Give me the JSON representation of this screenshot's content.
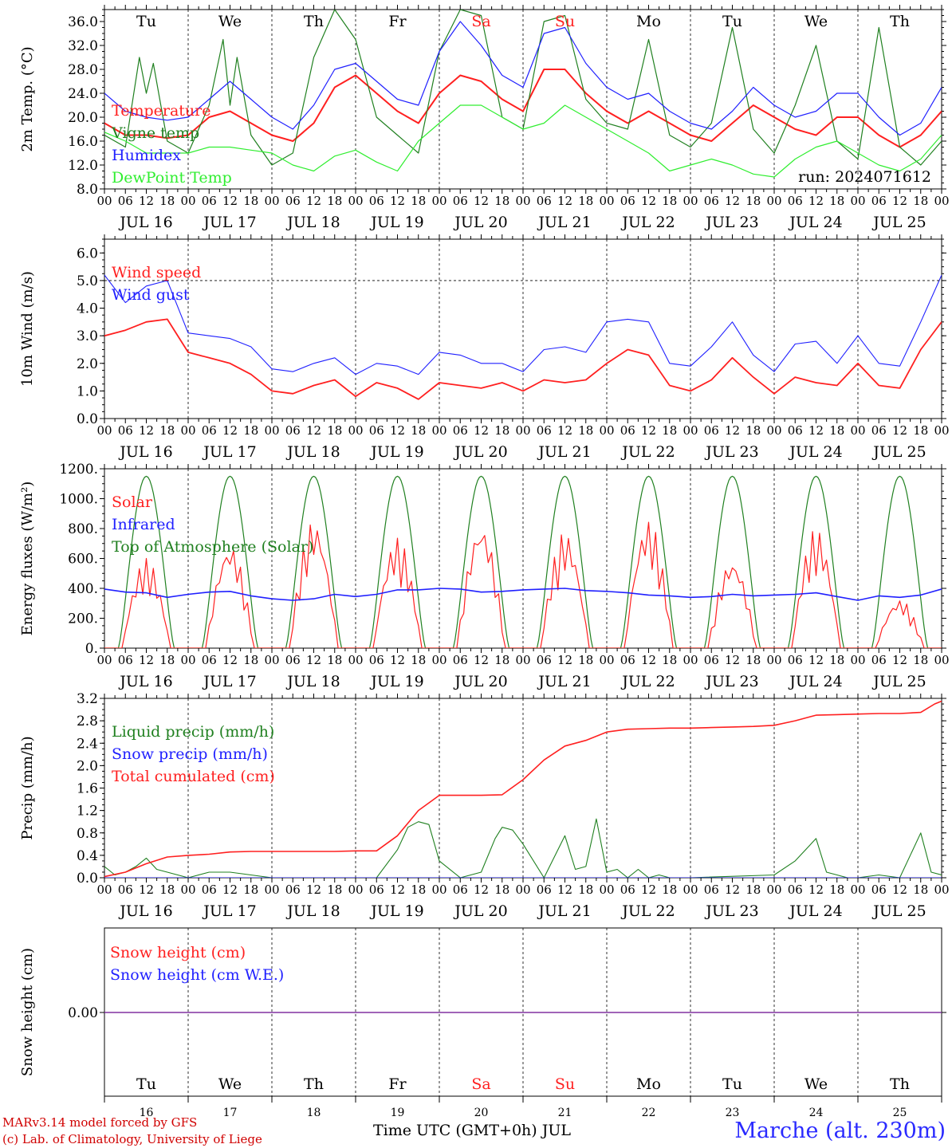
{
  "chart_data": [
    {
      "type": "line",
      "ylabel": "2m Temp. (°C)",
      "ylim": [
        8,
        38
      ],
      "yticks": [
        "8.0",
        "12.0",
        "16.0",
        "20.0",
        "24.0",
        "28.0",
        "32.0",
        "36.0"
      ],
      "ytick_values": [
        8,
        12,
        16,
        20,
        24,
        28,
        32,
        36
      ],
      "weekday_labels": [
        "Tu",
        "We",
        "Th",
        "Fr",
        "Sa",
        "Su",
        "Mo",
        "Tu",
        "We",
        "Th"
      ],
      "weekday_colors": [
        "#000000",
        "#000000",
        "#000000",
        "#000000",
        "#ff2020",
        "#ff2020",
        "#000000",
        "#000000",
        "#000000",
        "#000000"
      ],
      "annotation": "run: 2024071612",
      "x_unit": "hours since JUL 16 00 UTC",
      "series": [
        {
          "name": "Temperature",
          "color": "#ff2020",
          "x": [
            0,
            6,
            12,
            18,
            24,
            30,
            36,
            42,
            48,
            54,
            60,
            66,
            72,
            78,
            84,
            90,
            96,
            102,
            108,
            114,
            120,
            126,
            132,
            138,
            144,
            150,
            156,
            162,
            168,
            174,
            180,
            186,
            192,
            198,
            204,
            210,
            216,
            222,
            228,
            234,
            240
          ],
          "values": [
            19,
            17,
            17,
            16.5,
            17,
            20,
            21,
            19,
            17,
            16,
            19,
            25,
            27,
            24,
            21,
            19,
            24,
            27,
            26,
            23,
            21,
            28,
            28,
            24,
            21,
            19,
            21,
            19,
            17,
            16,
            19,
            22,
            20,
            18,
            17,
            20,
            20,
            17,
            15,
            17,
            21
          ]
        },
        {
          "name": "Vigne temp",
          "color": "#208020",
          "x": [
            0,
            6,
            10,
            12,
            14,
            18,
            24,
            30,
            34,
            36,
            38,
            42,
            48,
            54,
            60,
            66,
            72,
            78,
            84,
            90,
            96,
            102,
            108,
            114,
            120,
            126,
            132,
            138,
            144,
            150,
            156,
            162,
            168,
            174,
            180,
            186,
            192,
            198,
            204,
            210,
            216,
            222,
            228,
            234,
            240
          ],
          "values": [
            17,
            15,
            30,
            24,
            29,
            16,
            14,
            22,
            33,
            22,
            30,
            17,
            12,
            14,
            30,
            38,
            33,
            20,
            17,
            14,
            31,
            38,
            37,
            20,
            18,
            36,
            37,
            23,
            19,
            18,
            33,
            17,
            15,
            19,
            35,
            18,
            14,
            22,
            32,
            16,
            13,
            35,
            15,
            12,
            16
          ]
        },
        {
          "name": "Humidex",
          "color": "#2020ff",
          "x": [
            0,
            6,
            12,
            18,
            24,
            30,
            36,
            42,
            48,
            54,
            60,
            66,
            72,
            78,
            84,
            90,
            96,
            102,
            108,
            114,
            120,
            126,
            132,
            138,
            144,
            150,
            156,
            162,
            168,
            174,
            180,
            186,
            192,
            198,
            204,
            210,
            216,
            222,
            228,
            234,
            240
          ],
          "values": [
            24,
            21,
            20,
            19.5,
            20,
            23,
            26,
            23,
            20,
            18,
            22,
            28,
            29,
            26,
            23,
            22,
            31,
            36,
            32,
            27,
            25,
            34,
            35,
            29,
            25,
            23,
            24,
            21,
            19,
            18,
            21,
            25,
            22,
            20,
            21,
            24,
            24,
            20,
            17,
            19,
            25
          ]
        },
        {
          "name": "DewPoint Temp",
          "color": "#30ee30",
          "x": [
            0,
            6,
            12,
            18,
            24,
            30,
            36,
            42,
            48,
            54,
            60,
            66,
            72,
            78,
            84,
            90,
            96,
            102,
            108,
            114,
            120,
            126,
            132,
            138,
            144,
            150,
            156,
            162,
            168,
            174,
            180,
            186,
            192,
            198,
            204,
            210,
            216,
            222,
            228,
            234,
            240
          ],
          "values": [
            17.5,
            16,
            14,
            14,
            14,
            15,
            15,
            14.5,
            14,
            12,
            11,
            13.5,
            14.5,
            12.5,
            11,
            16,
            19,
            22,
            22,
            20,
            18,
            19,
            22,
            20,
            18,
            16,
            14,
            11,
            12,
            13,
            12,
            10.5,
            10,
            13,
            15,
            16,
            14,
            12,
            11,
            13,
            17
          ]
        }
      ]
    },
    {
      "type": "line",
      "ylabel": "10m Wind (m/s)",
      "ylim": [
        0,
        6.5
      ],
      "yticks": [
        "0.0",
        "1.0",
        "2.0",
        "3.0",
        "4.0",
        "5.0",
        "6.0"
      ],
      "ytick_values": [
        0,
        1,
        2,
        3,
        4,
        5,
        6
      ],
      "refline": 5,
      "series": [
        {
          "name": "Wind speed",
          "color": "#ff2020",
          "x": [
            0,
            6,
            12,
            18,
            24,
            30,
            36,
            42,
            48,
            54,
            60,
            66,
            72,
            78,
            84,
            90,
            96,
            102,
            108,
            114,
            120,
            126,
            132,
            138,
            144,
            150,
            156,
            162,
            168,
            174,
            180,
            186,
            192,
            198,
            204,
            210,
            216,
            222,
            228,
            234,
            240
          ],
          "values": [
            3,
            3.2,
            3.5,
            3.6,
            2.4,
            2.2,
            2,
            1.6,
            1,
            0.9,
            1.2,
            1.4,
            0.8,
            1.3,
            1.1,
            0.7,
            1.3,
            1.2,
            1.1,
            1.3,
            1,
            1.4,
            1.3,
            1.4,
            2,
            2.5,
            2.3,
            1.2,
            1,
            1.4,
            2.2,
            1.5,
            0.9,
            1.5,
            1.3,
            1.2,
            2,
            1.2,
            1.1,
            2.5,
            3.5
          ]
        },
        {
          "name": "Wind gust",
          "color": "#2020ff",
          "x": [
            0,
            6,
            12,
            18,
            24,
            30,
            36,
            42,
            48,
            54,
            60,
            66,
            72,
            78,
            84,
            90,
            96,
            102,
            108,
            114,
            120,
            126,
            132,
            138,
            144,
            150,
            156,
            162,
            168,
            174,
            180,
            186,
            192,
            198,
            204,
            210,
            216,
            222,
            228,
            234,
            240
          ],
          "values": [
            5.2,
            4.2,
            4.8,
            5,
            3.1,
            3,
            2.9,
            2.6,
            1.8,
            1.7,
            2,
            2.2,
            1.6,
            2,
            1.9,
            1.6,
            2.4,
            2.3,
            2,
            2,
            1.7,
            2.5,
            2.6,
            2.4,
            3.5,
            3.6,
            3.5,
            2,
            1.9,
            2.6,
            3.5,
            2.3,
            1.7,
            2.7,
            2.8,
            2,
            3,
            2,
            1.9,
            3.5,
            5.2
          ]
        }
      ]
    },
    {
      "type": "line",
      "ylabel": "Energy fluxes (W/m²)",
      "ylim": [
        0,
        1200
      ],
      "yticks": [
        "0.",
        "200.",
        "400.",
        "600.",
        "800.",
        "1000.",
        "1200."
      ],
      "ytick_values": [
        0,
        200,
        400,
        600,
        800,
        1000,
        1200
      ],
      "series": [
        {
          "name": "Solar",
          "color": "#ff2020",
          "daily_peaks": [
            600,
            700,
            860,
            740,
            840,
            780,
            860,
            600,
            800,
            330
          ]
        },
        {
          "name": "Infrared",
          "color": "#2020ff",
          "x": [
            0,
            6,
            12,
            18,
            24,
            30,
            36,
            42,
            48,
            54,
            60,
            66,
            72,
            78,
            84,
            90,
            96,
            102,
            108,
            114,
            120,
            126,
            132,
            138,
            144,
            150,
            156,
            162,
            168,
            174,
            180,
            186,
            192,
            198,
            204,
            210,
            216,
            222,
            228,
            234,
            240
          ],
          "values": [
            395,
            375,
            370,
            340,
            360,
            375,
            380,
            350,
            330,
            320,
            330,
            360,
            345,
            360,
            390,
            390,
            400,
            395,
            375,
            380,
            390,
            395,
            400,
            385,
            380,
            370,
            355,
            350,
            340,
            345,
            360,
            350,
            355,
            360,
            370,
            345,
            320,
            350,
            340,
            355,
            395
          ]
        },
        {
          "name": "Top of Atmosphere (Solar)",
          "color": "#208020",
          "daily_peak": 1150
        }
      ]
    },
    {
      "type": "line",
      "ylabel": "Precip (mm/h)",
      "ylim": [
        0,
        3.2
      ],
      "yticks": [
        "0.0",
        "0.4",
        "0.8",
        "1.2",
        "1.6",
        "2.0",
        "2.4",
        "2.8",
        "3.2"
      ],
      "ytick_values": [
        0,
        0.4,
        0.8,
        1.2,
        1.6,
        2.0,
        2.4,
        2.8,
        3.2
      ],
      "series": [
        {
          "name": "Liquid precip (mm/h)",
          "color": "#208020",
          "x": [
            0,
            3,
            6,
            9,
            12,
            15,
            18,
            21,
            24,
            30,
            36,
            42,
            48,
            72,
            78,
            84,
            87,
            90,
            93,
            96,
            102,
            108,
            112,
            114,
            117,
            120,
            126,
            132,
            135,
            138,
            141,
            144,
            147,
            150,
            153,
            156,
            159,
            162,
            168,
            192,
            198,
            204,
            207,
            210,
            213,
            216,
            222,
            228,
            234,
            237,
            240
          ],
          "values": [
            0.2,
            0.05,
            0.1,
            0.2,
            0.35,
            0.15,
            0.1,
            0.05,
            0,
            0.1,
            0.1,
            0.05,
            0,
            0,
            0,
            0.5,
            0.9,
            1.0,
            0.95,
            0.3,
            0,
            0.1,
            0.7,
            0.9,
            0.85,
            0.6,
            0,
            0.75,
            0.15,
            0.2,
            1.05,
            0.1,
            0.15,
            0,
            0.15,
            0,
            0.05,
            0,
            0,
            0.05,
            0.3,
            0.7,
            0.1,
            0.05,
            0,
            0,
            0.05,
            0,
            0.8,
            0.1,
            0.05
          ]
        },
        {
          "name": "Snow precip (mm/h)",
          "color": "#2020ff",
          "x": [
            0,
            240
          ],
          "values": [
            0,
            0
          ]
        },
        {
          "name": "Total cumulated (cm)",
          "color": "#ff2020",
          "x": [
            0,
            6,
            12,
            18,
            24,
            30,
            36,
            42,
            48,
            54,
            60,
            66,
            72,
            78,
            84,
            90,
            96,
            102,
            108,
            114,
            120,
            126,
            132,
            138,
            144,
            150,
            156,
            162,
            168,
            174,
            180,
            186,
            192,
            198,
            204,
            210,
            216,
            222,
            228,
            234,
            238,
            240
          ],
          "values": [
            0.02,
            0.1,
            0.25,
            0.37,
            0.4,
            0.42,
            0.46,
            0.47,
            0.47,
            0.47,
            0.47,
            0.47,
            0.48,
            0.48,
            0.75,
            1.2,
            1.47,
            1.47,
            1.47,
            1.48,
            1.75,
            2.1,
            2.35,
            2.45,
            2.6,
            2.65,
            2.66,
            2.67,
            2.67,
            2.68,
            2.69,
            2.7,
            2.72,
            2.8,
            2.9,
            2.91,
            2.92,
            2.93,
            2.93,
            2.95,
            3.1,
            3.15
          ]
        }
      ]
    },
    {
      "type": "line",
      "ylabel": "Snow height (cm)",
      "yticks": [
        "0.00"
      ],
      "series": [
        {
          "name": "Snow height (cm)",
          "color": "#ff2020",
          "x": [
            0,
            240
          ],
          "values": [
            0,
            0
          ]
        },
        {
          "name": "Snow height (cm W.E.)",
          "color": "#2020ff",
          "x": [
            0,
            240
          ],
          "values": [
            0,
            0
          ]
        }
      ],
      "day_numbers": [
        "16",
        "17",
        "18",
        "19",
        "20",
        "21",
        "22",
        "23",
        "24",
        "25"
      ]
    }
  ],
  "x_axis": {
    "hour_labels": [
      "00",
      "06",
      "12",
      "18"
    ],
    "end_label": "00",
    "date_labels": [
      "JUL 16",
      "JUL 17",
      "JUL 18",
      "JUL 19",
      "JUL 20",
      "JUL 21",
      "JUL 22",
      "JUL 23",
      "JUL 24",
      "JUL 25"
    ],
    "xlabel": "Time UTC (GMT+0h) JUL"
  },
  "footer": {
    "model": "MARv3.14 model forced by GFS",
    "credit": "(c) Lab. of Climatology, University of Liege",
    "station": "Marche (alt. 230m)"
  }
}
